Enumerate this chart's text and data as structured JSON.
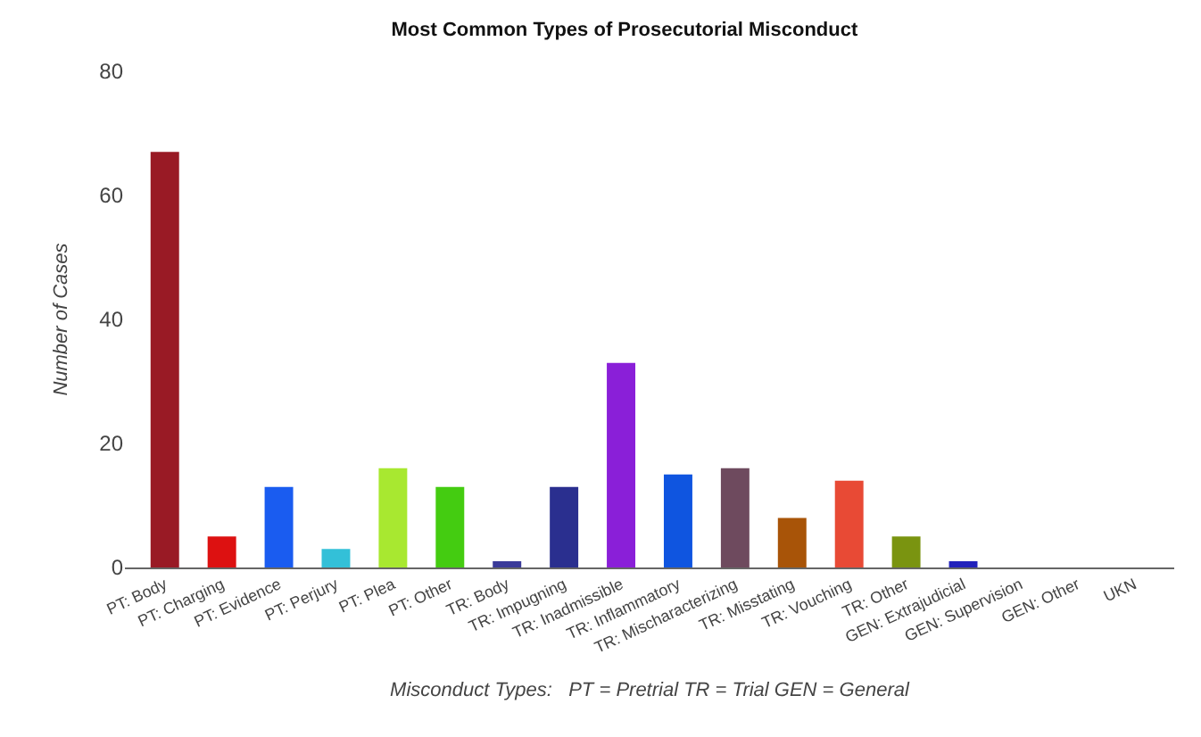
{
  "chart_data": {
    "type": "bar",
    "title": "Most Common Types of Prosecutorial Misconduct",
    "xlabel": "Misconduct Types:   PT = Pretrial TR = Trial GEN = General",
    "ylabel": "Number of Cases",
    "categories": [
      "PT: Body",
      "PT: Charging",
      "PT: Evidence",
      "PT: Perjury",
      "PT: Plea",
      "PT: Other",
      "TR: Body",
      "TR: Impugning",
      "TR: Inadmissible",
      "TR: Inflammatory",
      "TR: Mischaracterizing",
      "TR: Misstating",
      "TR: Vouching",
      "TR: Other",
      "GEN: Extrajudicial",
      "GEN: Supervision",
      "GEN: Other",
      "UKN"
    ],
    "values": [
      67,
      5,
      13,
      3,
      16,
      13,
      1,
      13,
      33,
      15,
      16,
      8,
      14,
      5,
      1,
      0,
      0,
      0
    ],
    "colors": [
      "#991a25",
      "#dd1111",
      "#1a5cf0",
      "#33c0d8",
      "#a8e830",
      "#44cc11",
      "#3a3a99",
      "#2a2f8f",
      "#8a1fd8",
      "#0f55e0",
      "#6e4a5e",
      "#a85408",
      "#e84a35",
      "#7a9410",
      "#2222bb",
      "#888888",
      "#888888",
      "#888888"
    ],
    "ylim": [
      0,
      80
    ],
    "yticks": [
      0,
      20,
      40,
      60,
      80
    ]
  }
}
